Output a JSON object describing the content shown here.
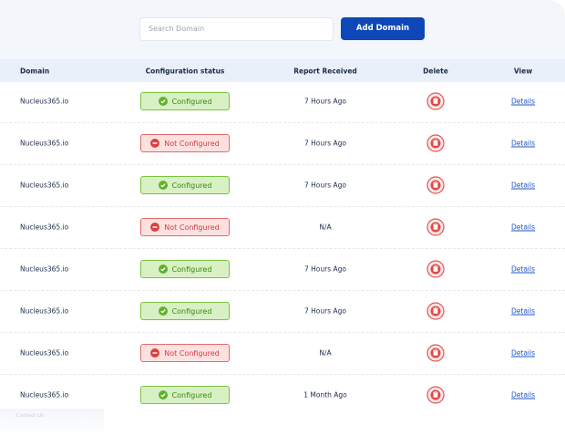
{
  "header": {
    "search_placeholder": "Search Domain",
    "button": "Add Domain"
  },
  "table": {
    "columns": [
      "Domain",
      "Configuration status",
      "Report Received",
      "Delete",
      "View"
    ],
    "rows": [
      {
        "domain": "Nucleus365.io",
        "status": "Configured",
        "configured": true,
        "report": "7 Hours Ago",
        "view": "Details"
      },
      {
        "domain": "Nucleus365.io",
        "status": "Not Configured",
        "configured": false,
        "report": "7 Hours Ago",
        "view": "Details"
      },
      {
        "domain": "Nucleus365.io",
        "status": "Configured",
        "configured": true,
        "report": "7 Hours Ago",
        "view": "Details"
      },
      {
        "domain": "Nucleus365.io",
        "status": "Not Configured",
        "configured": false,
        "report": "N/A",
        "view": "Details"
      },
      {
        "domain": "Nucleus365.io",
        "status": "Configured",
        "configured": true,
        "report": "7 Hours Ago",
        "view": "Details"
      },
      {
        "domain": "Nucleus365.io",
        "status": "Configured",
        "configured": true,
        "report": "7 Hours Ago",
        "view": "Details"
      },
      {
        "domain": "Nucleus365.io",
        "status": "Not Configured",
        "configured": false,
        "report": "N/A",
        "view": "Details"
      },
      {
        "domain": "Nucleus365.io",
        "status": "Configured",
        "configured": true,
        "report": "1 Month Ago",
        "view": "Details"
      }
    ]
  },
  "footer": {
    "sidebar_link": "Contact Us"
  }
}
